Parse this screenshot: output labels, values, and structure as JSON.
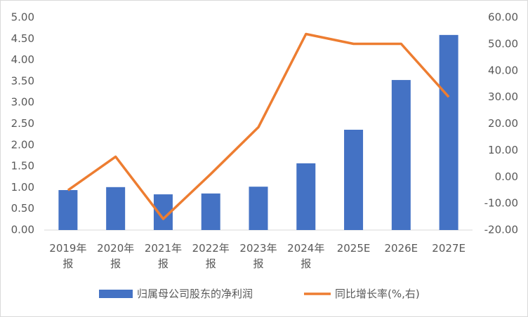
{
  "chart_data": {
    "type": "bar-line",
    "categories": [
      "2019年报",
      "2020年报",
      "2021年报",
      "2022年报",
      "2023年报",
      "2024年报",
      "2025E",
      "2026E",
      "2027E"
    ],
    "series": [
      {
        "name": "归属母公司股东的净利润",
        "color": "#4472c4",
        "type": "bar",
        "values": [
          0.94,
          1.01,
          0.84,
          0.86,
          1.02,
          1.57,
          2.36,
          3.53,
          4.59
        ]
      },
      {
        "name": "同比增长率(%,右)",
        "color": "#ed7d31",
        "type": "line",
        "axis": "y2",
        "values": [
          -5.0,
          7.6,
          -15.8,
          1.1,
          18.7,
          53.8,
          50.1,
          50.1,
          30.1
        ]
      }
    ],
    "ylim": [
      0,
      5
    ],
    "yticks": [
      {
        "value": 0,
        "label": "0.00"
      },
      {
        "value": 0.5,
        "label": "0.50"
      },
      {
        "value": 1,
        "label": "1.00"
      },
      {
        "value": 1.5,
        "label": "1.50"
      },
      {
        "value": 2,
        "label": "2.00"
      },
      {
        "value": 2.5,
        "label": "2.50"
      },
      {
        "value": 3,
        "label": "3.00"
      },
      {
        "value": 3.5,
        "label": "3.50"
      },
      {
        "value": 4,
        "label": "4.00"
      },
      {
        "value": 4.5,
        "label": "4.50"
      },
      {
        "value": 5,
        "label": "5.00"
      }
    ],
    "y2lim": [
      -20,
      60
    ],
    "y2ticks": [
      {
        "value": -20,
        "label": "-20.00"
      },
      {
        "value": -10,
        "label": "-10.00"
      },
      {
        "value": 0,
        "label": "0.00"
      },
      {
        "value": 10,
        "label": "10.00"
      },
      {
        "value": 20,
        "label": "20.00"
      },
      {
        "value": 30,
        "label": "30.00"
      },
      {
        "value": 40,
        "label": "40.00"
      },
      {
        "value": 50,
        "label": "50.00"
      },
      {
        "value": 60,
        "label": "60.00"
      }
    ],
    "legend": "bottom"
  }
}
